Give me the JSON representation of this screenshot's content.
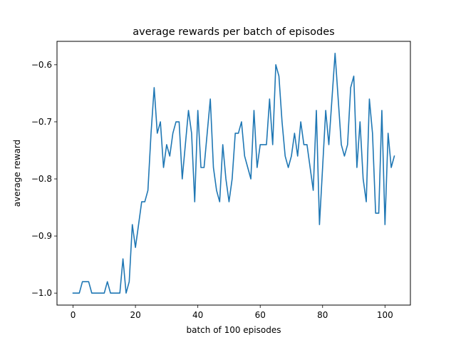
{
  "chart_data": {
    "type": "line",
    "title": "average rewards per batch of episodes",
    "xlabel": "batch of 100 episodes",
    "ylabel": "average reward",
    "xlim": [
      -5.15,
      108.15
    ],
    "ylim": [
      -1.021,
      -0.559
    ],
    "xticks": [
      0,
      20,
      40,
      60,
      80,
      100
    ],
    "yticks": [
      -1.0,
      -0.9,
      -0.8,
      -0.7,
      -0.6
    ],
    "ytick_labels": [
      "−1.0",
      "−0.9",
      "−0.8",
      "−0.7",
      "−0.6"
    ],
    "grid": false,
    "color": "#1f77b4",
    "x_start": 0,
    "values": [
      -1.0,
      -1.0,
      -1.0,
      -0.98,
      -0.98,
      -0.98,
      -1.0,
      -1.0,
      -1.0,
      -1.0,
      -1.0,
      -0.98,
      -1.0,
      -1.0,
      -1.0,
      -1.0,
      -0.94,
      -1.0,
      -0.98,
      -0.88,
      -0.92,
      -0.88,
      -0.84,
      -0.84,
      -0.82,
      -0.72,
      -0.64,
      -0.72,
      -0.7,
      -0.78,
      -0.74,
      -0.76,
      -0.72,
      -0.7,
      -0.7,
      -0.8,
      -0.74,
      -0.68,
      -0.72,
      -0.84,
      -0.68,
      -0.78,
      -0.78,
      -0.72,
      -0.66,
      -0.78,
      -0.82,
      -0.84,
      -0.74,
      -0.8,
      -0.84,
      -0.8,
      -0.72,
      -0.72,
      -0.7,
      -0.76,
      -0.78,
      -0.8,
      -0.68,
      -0.78,
      -0.74,
      -0.74,
      -0.74,
      -0.66,
      -0.74,
      -0.6,
      -0.62,
      -0.7,
      -0.76,
      -0.78,
      -0.76,
      -0.72,
      -0.76,
      -0.7,
      -0.74,
      -0.74,
      -0.78,
      -0.82,
      -0.68,
      -0.88,
      -0.78,
      -0.68,
      -0.74,
      -0.66,
      -0.58,
      -0.66,
      -0.74,
      -0.76,
      -0.74,
      -0.64,
      -0.62,
      -0.78,
      -0.7,
      -0.8,
      -0.84,
      -0.66,
      -0.72,
      -0.86,
      -0.86,
      -0.68,
      -0.88,
      -0.72,
      -0.78,
      -0.76
    ]
  }
}
